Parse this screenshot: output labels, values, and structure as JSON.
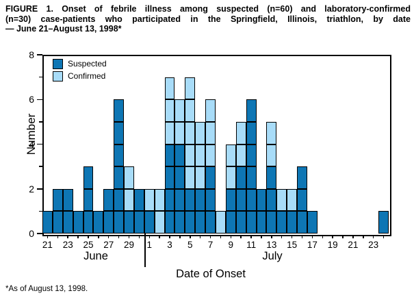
{
  "title_lines": [
    "FIGURE 1. Onset of febrile illness among suspected (n=60) and laboratory-confirmed",
    "(n=30) case-patients who participated in the Springfield, Illinois, triathlon, by date",
    "— June 21–August 13, 1998*"
  ],
  "footnote": "*As of August 13, 1998.",
  "legend": {
    "suspected_label": "Suspected",
    "confirmed_label": "Confirmed"
  },
  "colors": {
    "suspected": "#0e76b4",
    "confirmed": "#a8dcf8",
    "outline": "#000000"
  },
  "axes": {
    "ylabel": "Number",
    "xlabel": "Date of Onset",
    "month_labels": [
      "June",
      "July"
    ],
    "ymax": 8,
    "major_yticks": [
      0,
      2,
      4,
      6,
      8
    ],
    "minor_yticks": [
      1,
      3,
      5,
      7
    ]
  },
  "chart_data": {
    "type": "bar",
    "subtype": "stacked-unit-epi-curve",
    "series_names": [
      "Suspected",
      "Confirmed"
    ],
    "note": "one outlined box per case; suspected (dark) stacked below confirmed (light)",
    "ylim": [
      0,
      8
    ],
    "x_axis_label_rule": "odd days labeled",
    "days": [
      {
        "m": "June",
        "d": 21,
        "s": 1,
        "c": 0
      },
      {
        "m": "June",
        "d": 22,
        "s": 2,
        "c": 0
      },
      {
        "m": "June",
        "d": 23,
        "s": 2,
        "c": 0
      },
      {
        "m": "June",
        "d": 24,
        "s": 1,
        "c": 0
      },
      {
        "m": "June",
        "d": 25,
        "s": 3,
        "c": 0
      },
      {
        "m": "June",
        "d": 26,
        "s": 1,
        "c": 0
      },
      {
        "m": "June",
        "d": 27,
        "s": 2,
        "c": 0
      },
      {
        "m": "June",
        "d": 28,
        "s": 6,
        "c": 0
      },
      {
        "m": "June",
        "d": 29,
        "s": 1,
        "c": 2
      },
      {
        "m": "June",
        "d": 30,
        "s": 2,
        "c": 0
      },
      {
        "m": "July",
        "d": 1,
        "s": 1,
        "c": 1
      },
      {
        "m": "July",
        "d": 2,
        "s": 0,
        "c": 2
      },
      {
        "m": "July",
        "d": 3,
        "s": 4,
        "c": 3
      },
      {
        "m": "July",
        "d": 4,
        "s": 4,
        "c": 2
      },
      {
        "m": "July",
        "d": 5,
        "s": 2,
        "c": 5
      },
      {
        "m": "July",
        "d": 6,
        "s": 2,
        "c": 3
      },
      {
        "m": "July",
        "d": 7,
        "s": 3,
        "c": 3
      },
      {
        "m": "July",
        "d": 8,
        "s": 0,
        "c": 1
      },
      {
        "m": "July",
        "d": 9,
        "s": 2,
        "c": 2
      },
      {
        "m": "July",
        "d": 10,
        "s": 3,
        "c": 2
      },
      {
        "m": "July",
        "d": 11,
        "s": 6,
        "c": 0
      },
      {
        "m": "July",
        "d": 12,
        "s": 2,
        "c": 0
      },
      {
        "m": "July",
        "d": 13,
        "s": 3,
        "c": 2
      },
      {
        "m": "July",
        "d": 14,
        "s": 1,
        "c": 1
      },
      {
        "m": "July",
        "d": 15,
        "s": 1,
        "c": 1
      },
      {
        "m": "July",
        "d": 16,
        "s": 3,
        "c": 0
      },
      {
        "m": "July",
        "d": 17,
        "s": 1,
        "c": 0
      },
      {
        "m": "July",
        "d": 18,
        "s": 0,
        "c": 0
      },
      {
        "m": "July",
        "d": 19,
        "s": 0,
        "c": 0
      },
      {
        "m": "July",
        "d": 20,
        "s": 0,
        "c": 0
      },
      {
        "m": "July",
        "d": 21,
        "s": 0,
        "c": 0
      },
      {
        "m": "July",
        "d": 22,
        "s": 0,
        "c": 0
      },
      {
        "m": "July",
        "d": 23,
        "s": 0,
        "c": 0
      },
      {
        "m": "July",
        "d": 24,
        "s": 1,
        "c": 0
      }
    ],
    "totals": {
      "suspected": 60,
      "confirmed": 30
    }
  }
}
